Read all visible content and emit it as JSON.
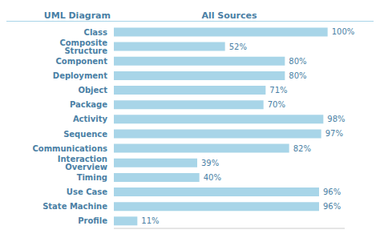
{
  "chart_data": {
    "type": "bar",
    "orientation": "horizontal",
    "title": "All Sources",
    "ylabel": "UML Diagram",
    "categories": [
      "Class",
      "Composite Structure",
      "Component",
      "Deployment",
      "Object",
      "Package",
      "Activity",
      "Sequence",
      "Communications",
      "Interaction Overview",
      "Timing",
      "Use Case",
      "State Machine",
      "Profile"
    ],
    "values": [
      100,
      52,
      80,
      80,
      71,
      70,
      98,
      97,
      82,
      39,
      40,
      96,
      96,
      11
    ],
    "value_labels": [
      "100%",
      "52%",
      "80%",
      "80%",
      "71%",
      "70%",
      "98%",
      "97%",
      "82%",
      "39%",
      "40%",
      "96%",
      "96%",
      "11%"
    ],
    "data_labels": true,
    "color": "#a8d5e8",
    "xlim": [
      0,
      108
    ],
    "tick_labels": "y",
    "grid": false
  }
}
